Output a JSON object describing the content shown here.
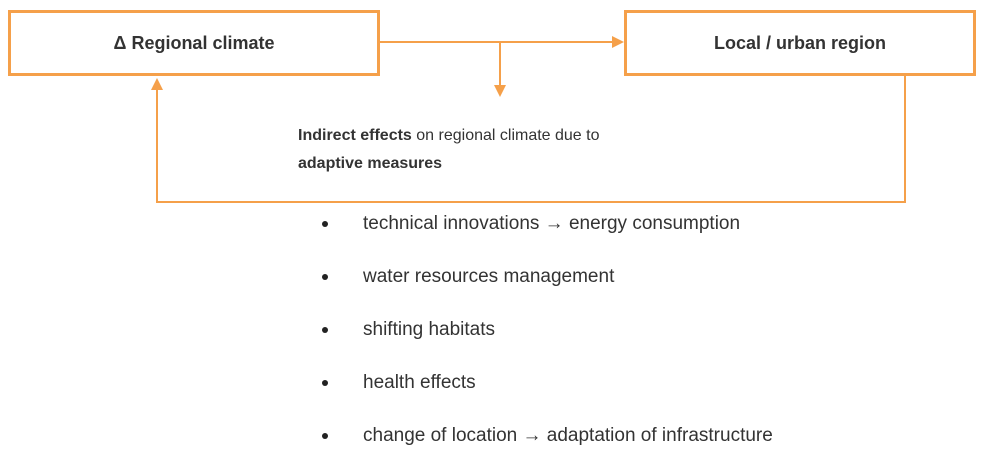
{
  "nodes": [
    {
      "label": "Δ Regional climate"
    },
    {
      "label": "Local / urban region"
    }
  ],
  "effect": {
    "lead": "Indirect effects",
    "text": "on regional climate due to",
    "tail": "adaptive measures"
  },
  "measures": [
    "technical innovations → energy consumption",
    "water resources management",
    "shifting habitats",
    "health effects",
    "change of location → adaptation of infrastructure"
  ]
}
